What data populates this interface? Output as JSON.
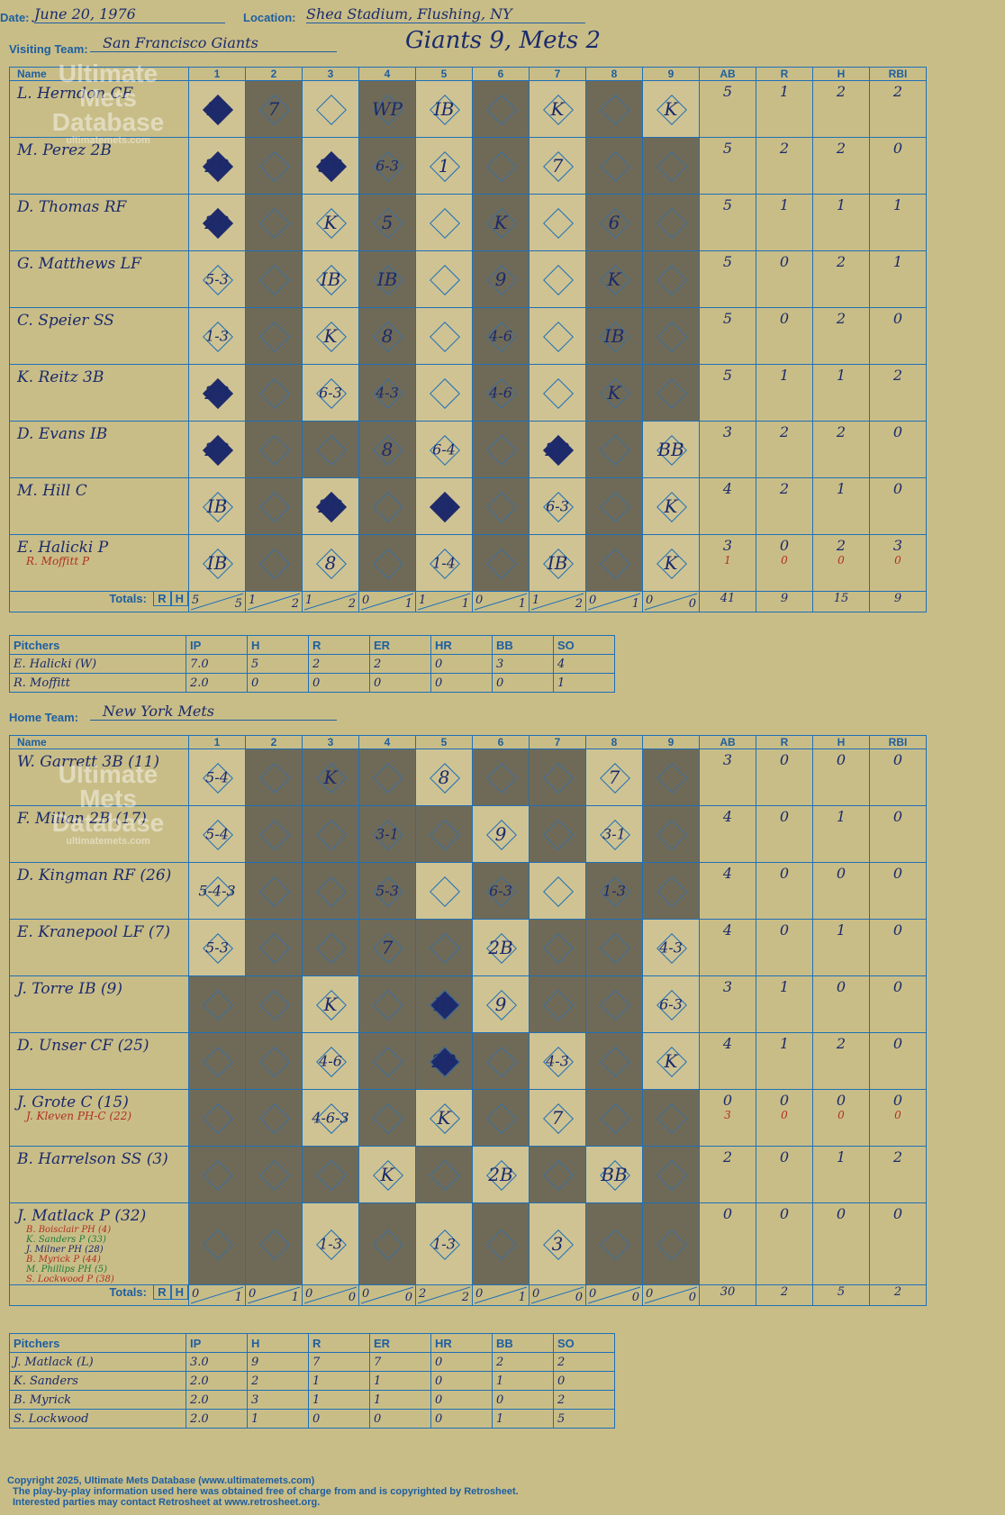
{
  "header": {
    "date_label": "Date:",
    "date": "June 20, 1976",
    "location_label": "Location:",
    "location": "Shea Stadium, Flushing, NY",
    "score_title": "Giants 9, Mets 2",
    "visiting_label": "Visiting Team:",
    "visiting_team": "San Francisco Giants",
    "home_label": "Home Team:",
    "home_team": "New York Mets"
  },
  "watermark": {
    "line1": "Ultimate",
    "line2": "Mets",
    "line3": "Database",
    "line4": "ultimatemets.com"
  },
  "columns": {
    "name": "Name",
    "innings": [
      "1",
      "2",
      "3",
      "4",
      "5",
      "6",
      "7",
      "8",
      "9"
    ],
    "stats": [
      "AB",
      "R",
      "H",
      "RBI"
    ]
  },
  "totals_label": "Totals:",
  "rh_r": "R",
  "rh_h": "H",
  "visitors": {
    "batters": [
      {
        "name": "L. Herndon CF",
        "cells": [
          "IB",
          "7",
          "",
          "WP",
          "IB",
          "",
          "K",
          "",
          "K"
        ],
        "stats": [
          "5",
          "1",
          "2",
          "2"
        ]
      },
      {
        "name": "M. Perez 2B",
        "cells": [
          "2B",
          "",
          "3B",
          "6-3",
          "1",
          "",
          "7",
          "",
          ""
        ],
        "stats": [
          "5",
          "2",
          "2",
          "0"
        ]
      },
      {
        "name": "D. Thomas RF",
        "cells": [
          "2B",
          "",
          "K",
          "5",
          "",
          "K",
          "",
          "6",
          ""
        ],
        "stats": [
          "5",
          "1",
          "1",
          "1"
        ]
      },
      {
        "name": "G. Matthews LF",
        "cells": [
          "5-3",
          "",
          "IB",
          "IB",
          "",
          "9",
          "",
          "K",
          ""
        ],
        "stats": [
          "5",
          "0",
          "2",
          "1"
        ]
      },
      {
        "name": "C. Speier SS",
        "cells": [
          "1-3",
          "",
          "K",
          "8",
          "",
          "4-6",
          "",
          "IB",
          ""
        ],
        "stats": [
          "5",
          "0",
          "2",
          "0"
        ]
      },
      {
        "name": "K. Reitz 3B",
        "cells": [
          "2B",
          "",
          "6-3",
          "4-3",
          "",
          "4-6",
          "",
          "K",
          ""
        ],
        "stats": [
          "5",
          "1",
          "1",
          "2"
        ]
      },
      {
        "name": "D. Evans IB",
        "cells": [
          "2B",
          "",
          "",
          "8",
          "6-4",
          "",
          "2B",
          "",
          "BB"
        ],
        "stats": [
          "3",
          "2",
          "2",
          "0"
        ]
      },
      {
        "name": "M. Hill C",
        "cells": [
          "IB",
          "",
          "2B",
          "",
          "1-4",
          "",
          "6-3",
          "",
          "K"
        ],
        "stats": [
          "4",
          "2",
          "1",
          "0"
        ]
      },
      {
        "name": "E. Halicki P",
        "sub": "R. Moffitt P",
        "cells": [
          "IB",
          "",
          "8",
          "",
          "1-4",
          "",
          "IB",
          "",
          "K"
        ],
        "stats": [
          "3",
          "0",
          "2",
          "3"
        ],
        "sub_stats": [
          "1",
          "0",
          "0",
          "0"
        ]
      }
    ],
    "totals_rh": [
      [
        "5",
        "5"
      ],
      [
        "1",
        "2"
      ],
      [
        "1",
        "2"
      ],
      [
        "0",
        "1"
      ],
      [
        "1",
        "1"
      ],
      [
        "0",
        "1"
      ],
      [
        "1",
        "2"
      ],
      [
        "0",
        "1"
      ],
      [
        "0",
        "0"
      ]
    ],
    "totals_stats": [
      "41",
      "9",
      "15",
      "9"
    ],
    "pitcher_headers": [
      "Pitchers",
      "IP",
      "H",
      "R",
      "ER",
      "HR",
      "BB",
      "SO"
    ],
    "pitchers": [
      [
        "E. Halicki (W)",
        "7.0",
        "5",
        "2",
        "2",
        "0",
        "3",
        "4"
      ],
      [
        "R. Moffitt",
        "2.0",
        "0",
        "0",
        "0",
        "0",
        "0",
        "1"
      ]
    ]
  },
  "home": {
    "batters": [
      {
        "name": "W. Garrett 3B (11)",
        "cells": [
          "5-4",
          "",
          "K",
          "",
          "8",
          "",
          "",
          "7",
          ""
        ],
        "stats": [
          "3",
          "0",
          "0",
          "0"
        ]
      },
      {
        "name": "F. Millan 2B (17)",
        "cells": [
          "5-4",
          "",
          "",
          "3-1",
          "",
          "9",
          "",
          "3-1",
          ""
        ],
        "stats": [
          "4",
          "0",
          "1",
          "0"
        ]
      },
      {
        "name": "D. Kingman RF (26)",
        "cells": [
          "5-4-3",
          "",
          "",
          "5-3",
          "",
          "6-3",
          "",
          "1-3",
          ""
        ],
        "stats": [
          "4",
          "0",
          "0",
          "0"
        ]
      },
      {
        "name": "E. Kranepool LF (7)",
        "cells": [
          "5-3",
          "",
          "",
          "7",
          "",
          "2B",
          "",
          "",
          "4-3"
        ],
        "stats": [
          "4",
          "0",
          "1",
          "0"
        ]
      },
      {
        "name": "J. Torre IB (9)",
        "cells": [
          "",
          "",
          "K",
          "",
          "IB",
          "9",
          "",
          "",
          "6-3"
        ],
        "stats": [
          "3",
          "1",
          "0",
          "0"
        ]
      },
      {
        "name": "D. Unser CF (25)",
        "cells": [
          "",
          "",
          "4-6",
          "",
          "2B",
          "",
          "4-3",
          "",
          "K"
        ],
        "stats": [
          "4",
          "1",
          "2",
          "0"
        ]
      },
      {
        "name": "J. Grote C (15)",
        "sub": "J. Kleven PH-C (22)",
        "cells": [
          "",
          "",
          "4-6-3",
          "",
          "K",
          "",
          "7",
          "",
          ""
        ],
        "stats": [
          "0",
          "0",
          "0",
          "0"
        ],
        "sub_stats": [
          "3",
          "0",
          "0",
          "0"
        ]
      },
      {
        "name": "B. Harrelson SS (3)",
        "cells": [
          "",
          "",
          "",
          "K",
          "",
          "2B",
          "",
          "BB",
          ""
        ],
        "stats": [
          "2",
          "0",
          "1",
          "2"
        ]
      },
      {
        "name": "J. Matlack P (32)",
        "subs": [
          "B. Boisclair PH (4)",
          "K. Sanders P (33)",
          "J. Milner PH (28)",
          "B. Myrick P (44)",
          "M. Phillips PH (5)",
          "S. Lockwood P (38)"
        ],
        "cells": [
          "",
          "",
          "1-3",
          "",
          "1-3",
          "",
          "3",
          "",
          ""
        ],
        "stats": [
          "0",
          "0",
          "0",
          "0"
        ]
      }
    ],
    "totals_rh": [
      [
        "0",
        "1"
      ],
      [
        "0",
        "1"
      ],
      [
        "0",
        "0"
      ],
      [
        "0",
        "0"
      ],
      [
        "2",
        "2"
      ],
      [
        "0",
        "1"
      ],
      [
        "0",
        "0"
      ],
      [
        "0",
        "0"
      ],
      [
        "0",
        "0"
      ]
    ],
    "totals_stats": [
      "30",
      "2",
      "5",
      "2"
    ],
    "pitcher_headers": [
      "Pitchers",
      "IP",
      "H",
      "R",
      "ER",
      "HR",
      "BB",
      "SO"
    ],
    "pitchers": [
      [
        "J. Matlack (L)",
        "3.0",
        "9",
        "7",
        "7",
        "0",
        "2",
        "2"
      ],
      [
        "K. Sanders",
        "2.0",
        "2",
        "1",
        "1",
        "0",
        "1",
        "0"
      ],
      [
        "B. Myrick",
        "2.0",
        "3",
        "1",
        "1",
        "0",
        "0",
        "2"
      ],
      [
        "S. Lockwood",
        "2.0",
        "1",
        "0",
        "0",
        "0",
        "1",
        "5"
      ]
    ]
  },
  "footer": {
    "line1": "Copyright 2025, Ultimate Mets Database (www.ultimatemets.com)",
    "line2": "The play-by-play information used here was obtained free of charge from and is copyrighted by Retrosheet.",
    "line3": "Interested parties may contact Retrosheet at www.retrosheet.org."
  }
}
